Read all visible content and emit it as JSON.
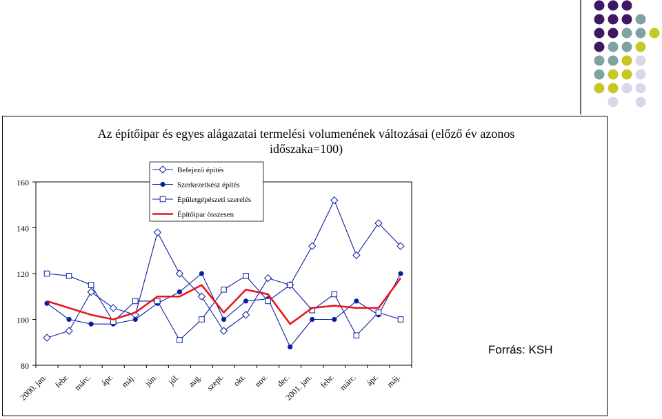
{
  "decor_colors": {
    "purple": "#3f1763",
    "teal": "#7fa3a0",
    "lime": "#c6c824",
    "lavender": "#d8d8ea"
  },
  "chart_data": {
    "type": "line",
    "title": "Az építőipar és egyes alágazatai termelési volumenének változásai (előző év azonos",
    "title_line2": "időszaka=100)",
    "source": "Forrás: KSH",
    "categories": [
      "2000. jan.",
      "febr.",
      "márc.",
      "ápr.",
      "máj.",
      "jún.",
      "júl.",
      "aug.",
      "szept.",
      "okt.",
      "nov.",
      "dec.",
      "2001. jan.",
      "febr.",
      "márc.",
      "ápr.",
      "máj."
    ],
    "ylim": [
      80,
      160
    ],
    "yticks": [
      80,
      100,
      120,
      140,
      160
    ],
    "grid": false,
    "legend_position": "top-left",
    "series": [
      {
        "name": "Befejező építés",
        "color": "#0b1ea0",
        "marker": "diamond",
        "values": [
          92,
          95,
          112,
          105,
          102,
          138,
          120,
          110,
          95,
          102,
          118,
          115,
          132,
          152,
          128,
          142,
          132
        ]
      },
      {
        "name": "Szerkezetkész építés",
        "color": "#0b1ea0",
        "marker": "circle",
        "values": [
          107,
          100,
          98,
          98,
          100,
          107,
          112,
          120,
          100,
          108,
          109,
          88,
          100,
          100,
          108,
          102,
          120
        ]
      },
      {
        "name": "Épületgépészeti szerelés",
        "color": "#0b1ea0",
        "marker": "square",
        "values": [
          120,
          119,
          115,
          99,
          108,
          108,
          91,
          100,
          113,
          119,
          108,
          115,
          104,
          111,
          93,
          103,
          100
        ]
      },
      {
        "name": "Építőipar összesen",
        "color": "#e8141b",
        "marker": "none",
        "values": [
          108,
          105,
          102,
          100,
          103,
          110,
          110,
          115,
          103,
          113,
          111,
          98,
          105,
          106,
          105,
          105,
          118
        ]
      }
    ]
  }
}
